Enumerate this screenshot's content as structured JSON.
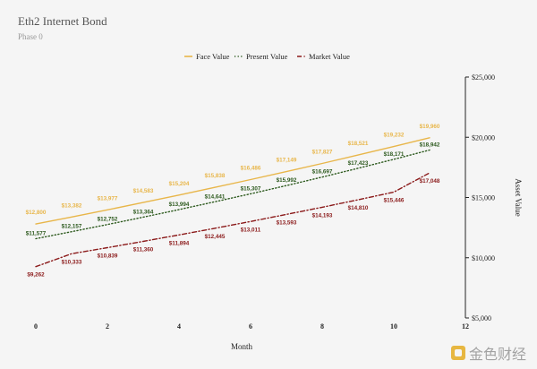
{
  "chart_data": {
    "type": "line",
    "title": "Eth2 Internet Bond",
    "subtitle": "Phase 0",
    "xlabel": "Month",
    "ylabel": "Asset Value",
    "x": [
      0,
      1,
      2,
      3,
      4,
      5,
      6,
      7,
      8,
      9,
      10,
      11
    ],
    "xlim": [
      0,
      12
    ],
    "xticks": [
      "0",
      "2",
      "4",
      "6",
      "8",
      "10",
      "12"
    ],
    "ylim": [
      5000,
      25000
    ],
    "yticks": [
      "$5,000",
      "$10,000",
      "$15,000",
      "$20,000",
      "$25,000"
    ],
    "y_axis_side": "right",
    "legend_position": "top-center",
    "series": [
      {
        "name": "Face Value",
        "color": "#e8b64a",
        "style": "solid",
        "values": [
          12800,
          13382,
          13977,
          14583,
          15204,
          15838,
          16486,
          17149,
          17827,
          18521,
          19232,
          19960
        ],
        "labels": [
          "$12,800",
          "$13,382",
          "$13,977",
          "$14,583",
          "$15,204",
          "$15,838",
          "$16,486",
          "$17,149",
          "$17,827",
          "$18,521",
          "$19,232",
          "$19,960"
        ]
      },
      {
        "name": "Present Value",
        "color": "#2d5a1e",
        "style": "dotted",
        "values": [
          11577,
          12157,
          12752,
          13364,
          13994,
          14641,
          15307,
          15992,
          16697,
          17423,
          18171,
          18942
        ],
        "labels": [
          "$11,577",
          "$12,157",
          "$12,752",
          "$13,364",
          "$13,994",
          "$14,641",
          "$15,307",
          "$15,992",
          "$16,697",
          "$17,423",
          "$18,171",
          "$18,942"
        ]
      },
      {
        "name": "Market Value",
        "color": "#8b1a1a",
        "style": "dashdot",
        "values": [
          9262,
          10333,
          10839,
          11360,
          11894,
          12445,
          13011,
          13593,
          14193,
          14810,
          15446,
          17048
        ],
        "labels": [
          "$9,262",
          "$10,333",
          "$10,839",
          "$11,360",
          "$11,894",
          "$12,445",
          "$13,011",
          "$13,593",
          "$14,193",
          "$14,810",
          "$15,446",
          "$17,048"
        ]
      }
    ]
  },
  "watermark": {
    "text": "金色财经",
    "icon": "golden-finance-logo"
  }
}
